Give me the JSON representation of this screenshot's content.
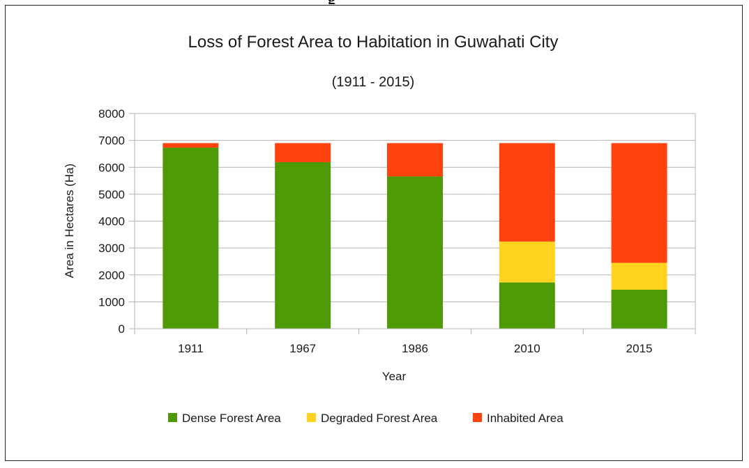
{
  "chart_data": {
    "type": "bar",
    "stacked": true,
    "title": "Loss of Forest Area to Habitation in Guwahati City",
    "subtitle": "(1911 - 2015)",
    "xlabel": "Year",
    "ylabel": "Area in Hectares (Ha)",
    "ylim": [
      0,
      8000
    ],
    "yticks": [
      0,
      1000,
      2000,
      3000,
      4000,
      5000,
      6000,
      7000,
      8000
    ],
    "grid": true,
    "legend_position": "bottom",
    "categories": [
      "1911",
      "1967",
      "1986",
      "2010",
      "2015"
    ],
    "series": [
      {
        "name": "Dense Forest Area",
        "color": "#4e9a06",
        "values": [
          6730,
          6190,
          5660,
          1720,
          1450
        ]
      },
      {
        "name": "Degraded Forest Area",
        "color": "#ffd320",
        "values": [
          0,
          0,
          0,
          1520,
          1000
        ]
      },
      {
        "name": "Inhabited Area",
        "color": "#ff420e",
        "values": [
          170,
          710,
          1240,
          3660,
          4450
        ]
      }
    ]
  }
}
